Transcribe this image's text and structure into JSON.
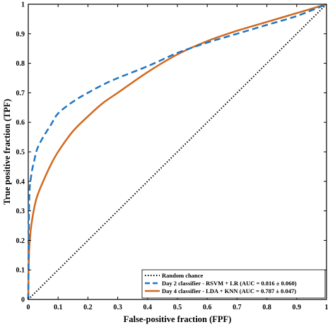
{
  "chart_data": {
    "type": "line",
    "xlabel": "False-positive fraction (FPF)",
    "ylabel": "True positive fraction (TPF)",
    "xlim": [
      0,
      1
    ],
    "ylim": [
      0,
      1
    ],
    "xticks": [
      "0",
      "0.1",
      "0.2",
      "0.3",
      "0.4",
      "0.5",
      "0.6",
      "0.7",
      "0.8",
      "0.9",
      "1"
    ],
    "yticks": [
      "0",
      "0.1",
      "0.2",
      "0.3",
      "0.4",
      "0.5",
      "0.6",
      "0.7",
      "0.8",
      "0.9",
      "1"
    ],
    "grid": false,
    "legend_position": "bottom-right",
    "series": [
      {
        "name": "Random chance",
        "style": "dotted",
        "color": "#000000",
        "x": [
          0,
          1
        ],
        "y": [
          0,
          1
        ]
      },
      {
        "name": "Day 2 classifier - RSVM + LR (AUC = 0.816 ± 0.060)",
        "style": "dashed",
        "color": "#1f77c4",
        "x": [
          0,
          0.003,
          0.01,
          0.02,
          0.03,
          0.05,
          0.075,
          0.1,
          0.15,
          0.2,
          0.25,
          0.3,
          0.4,
          0.5,
          0.6,
          0.7,
          0.8,
          0.9,
          1.0
        ],
        "y": [
          0,
          0.33,
          0.42,
          0.47,
          0.51,
          0.55,
          0.59,
          0.63,
          0.67,
          0.7,
          0.727,
          0.75,
          0.79,
          0.835,
          0.87,
          0.9,
          0.93,
          0.96,
          1.0
        ]
      },
      {
        "name": "Day 4 classifier - LDA + KNN (AUC = 0.787 ± 0.047)",
        "style": "solid",
        "color": "#d2691e",
        "x": [
          0,
          0.001,
          0.003,
          0.006,
          0.01,
          0.02,
          0.03,
          0.05,
          0.075,
          0.1,
          0.15,
          0.2,
          0.25,
          0.3,
          0.4,
          0.5,
          0.6,
          0.7,
          0.8,
          0.9,
          1.0
        ],
        "y": [
          0,
          0.1,
          0.17,
          0.21,
          0.25,
          0.31,
          0.35,
          0.4,
          0.455,
          0.5,
          0.57,
          0.62,
          0.665,
          0.7,
          0.77,
          0.83,
          0.875,
          0.91,
          0.94,
          0.97,
          1.0
        ]
      }
    ]
  }
}
